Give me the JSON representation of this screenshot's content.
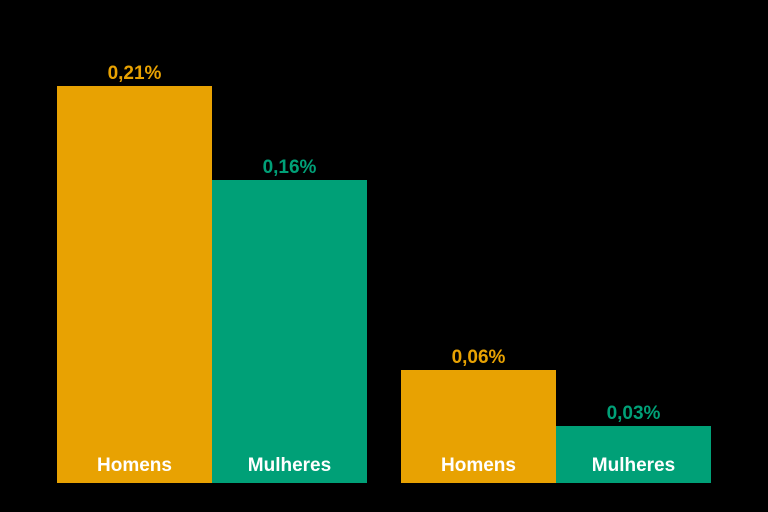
{
  "chart_data": {
    "type": "bar",
    "layout": "grouped",
    "background_color": "#000000",
    "unit": "%",
    "decimal_separator": ",",
    "ylim": [
      0,
      0.22
    ],
    "axes_visible": false,
    "grid": false,
    "series": [
      {
        "name": "Homens",
        "color": "#E8A202",
        "values": [
          0.21,
          0.06
        ],
        "value_labels": [
          "0,21%",
          "0,06%"
        ]
      },
      {
        "name": "Mulheres",
        "color": "#00A077",
        "values": [
          0.16,
          0.03
        ],
        "value_labels": [
          "0,16%",
          "0,03%"
        ]
      }
    ],
    "bars": [
      {
        "group": 1,
        "label": "Homens",
        "value": 0.21,
        "value_label": "0,21%",
        "color": "#E8A202"
      },
      {
        "group": 1,
        "label": "Mulheres",
        "value": 0.16,
        "value_label": "0,16%",
        "color": "#00A077"
      },
      {
        "group": 2,
        "label": "Homens",
        "value": 0.06,
        "value_label": "0,06%",
        "color": "#E8A202"
      },
      {
        "group": 2,
        "label": "Mulheres",
        "value": 0.03,
        "value_label": "0,03%",
        "color": "#00A077"
      }
    ],
    "category_label_color": "#FFFFFF"
  }
}
